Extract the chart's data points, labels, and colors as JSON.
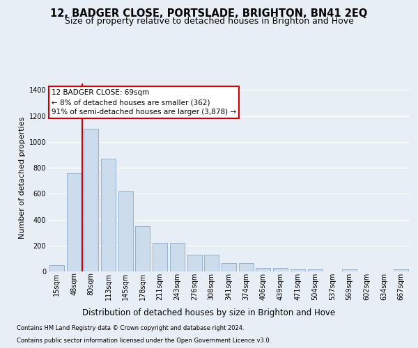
{
  "title": "12, BADGER CLOSE, PORTSLADE, BRIGHTON, BN41 2EQ",
  "subtitle": "Size of property relative to detached houses in Brighton and Hove",
  "xlabel": "Distribution of detached houses by size in Brighton and Hove",
  "ylabel": "Number of detached properties",
  "footnote1": "Contains HM Land Registry data © Crown copyright and database right 2024.",
  "footnote2": "Contains public sector information licensed under the Open Government Licence v3.0.",
  "categories": [
    "15sqm",
    "48sqm",
    "80sqm",
    "113sqm",
    "145sqm",
    "178sqm",
    "211sqm",
    "243sqm",
    "276sqm",
    "308sqm",
    "341sqm",
    "374sqm",
    "406sqm",
    "439sqm",
    "471sqm",
    "504sqm",
    "537sqm",
    "569sqm",
    "602sqm",
    "634sqm",
    "667sqm"
  ],
  "values": [
    50,
    755,
    1100,
    870,
    620,
    350,
    220,
    220,
    130,
    130,
    65,
    65,
    28,
    28,
    18,
    18,
    0,
    15,
    0,
    0,
    18
  ],
  "bar_color": "#ccdcec",
  "bar_edge_color": "#88aacc",
  "vline_color": "#cc0000",
  "vline_position": 1.5,
  "annotation_line1": "12 BADGER CLOSE: 69sqm",
  "annotation_line2": "← 8% of detached houses are smaller (362)",
  "annotation_line3": "91% of semi-detached houses are larger (3,878) →",
  "annotation_box_facecolor": "#ffffff",
  "annotation_box_edgecolor": "#cc0000",
  "ylim_max": 1450,
  "yticks": [
    0,
    200,
    400,
    600,
    800,
    1000,
    1200,
    1400
  ],
  "bg_color": "#e8eef5",
  "grid_color": "#ffffff",
  "title_fontsize": 10.5,
  "subtitle_fontsize": 9,
  "ylabel_fontsize": 8,
  "xlabel_fontsize": 8.5,
  "tick_fontsize": 7,
  "annot_fontsize": 7.5,
  "footnote_fontsize": 6
}
